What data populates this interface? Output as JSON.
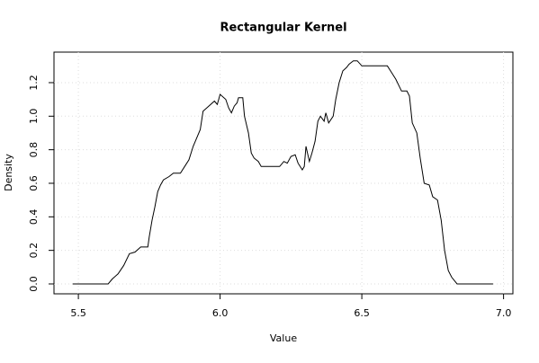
{
  "chart_data": {
    "type": "line",
    "title": "Rectangular Kernel",
    "x_label": "Value",
    "y_label": "Density",
    "xlim": [
      5.414,
      7.033
    ],
    "ylim": [
      -0.059,
      1.382
    ],
    "xticks": [
      5.5,
      {
        "value": 6,
        "label": "6.0"
      },
      6.5,
      {
        "value": 7,
        "label": "7.0"
      }
    ],
    "yticks": [
      {
        "value": 0,
        "label": "0.0"
      },
      0.2,
      0.4,
      0.6,
      0.8,
      {
        "value": 1,
        "label": "1.0"
      },
      1.2
    ],
    "grid": true,
    "series": [
      {
        "color": "#000000",
        "x": [
          5.48,
          5.605,
          5.62,
          5.64,
          5.66,
          5.68,
          5.7,
          5.72,
          5.745,
          5.75,
          5.76,
          5.77,
          5.78,
          5.79,
          5.8,
          5.82,
          5.835,
          5.86,
          5.875,
          5.89,
          5.905,
          5.915,
          5.93,
          5.94,
          5.96,
          5.98,
          5.99,
          6.0,
          6.02,
          6.03,
          6.04,
          6.05,
          6.06,
          6.065,
          6.08,
          6.086,
          6.1,
          6.11,
          6.12,
          6.135,
          6.145,
          6.21,
          6.225,
          6.237,
          6.25,
          6.265,
          6.275,
          6.29,
          6.297,
          6.303,
          6.315,
          6.324,
          6.335,
          6.345,
          6.354,
          6.367,
          6.373,
          6.383,
          6.399,
          6.408,
          6.42,
          6.433,
          6.446,
          6.455,
          6.47,
          6.484,
          6.5,
          6.59,
          6.605,
          6.62,
          6.64,
          6.659,
          6.668,
          6.678,
          6.694,
          6.706,
          6.72,
          6.738,
          6.75,
          6.767,
          6.78,
          6.792,
          6.805,
          6.817,
          6.836,
          6.963
        ],
        "values": [
          0,
          0,
          0.03,
          0.06,
          0.11,
          0.18,
          0.19,
          0.22,
          0.22,
          0.28,
          0.38,
          0.46,
          0.55,
          0.59,
          0.62,
          0.64,
          0.66,
          0.66,
          0.7,
          0.74,
          0.82,
          0.86,
          0.92,
          1.03,
          1.06,
          1.09,
          1.07,
          1.13,
          1.1,
          1.05,
          1.02,
          1.06,
          1.08,
          1.11,
          1.11,
          1.0,
          0.9,
          0.78,
          0.75,
          0.73,
          0.7,
          0.7,
          0.73,
          0.72,
          0.76,
          0.77,
          0.72,
          0.68,
          0.7,
          0.82,
          0.73,
          0.78,
          0.85,
          0.97,
          1.0,
          0.97,
          1.02,
          0.96,
          1.0,
          1.1,
          1.2,
          1.27,
          1.29,
          1.31,
          1.33,
          1.33,
          1.3,
          1.3,
          1.26,
          1.22,
          1.15,
          1.15,
          1.12,
          0.96,
          0.9,
          0.75,
          0.6,
          0.59,
          0.52,
          0.5,
          0.38,
          0.2,
          0.08,
          0.04,
          0,
          0
        ]
      }
    ]
  }
}
